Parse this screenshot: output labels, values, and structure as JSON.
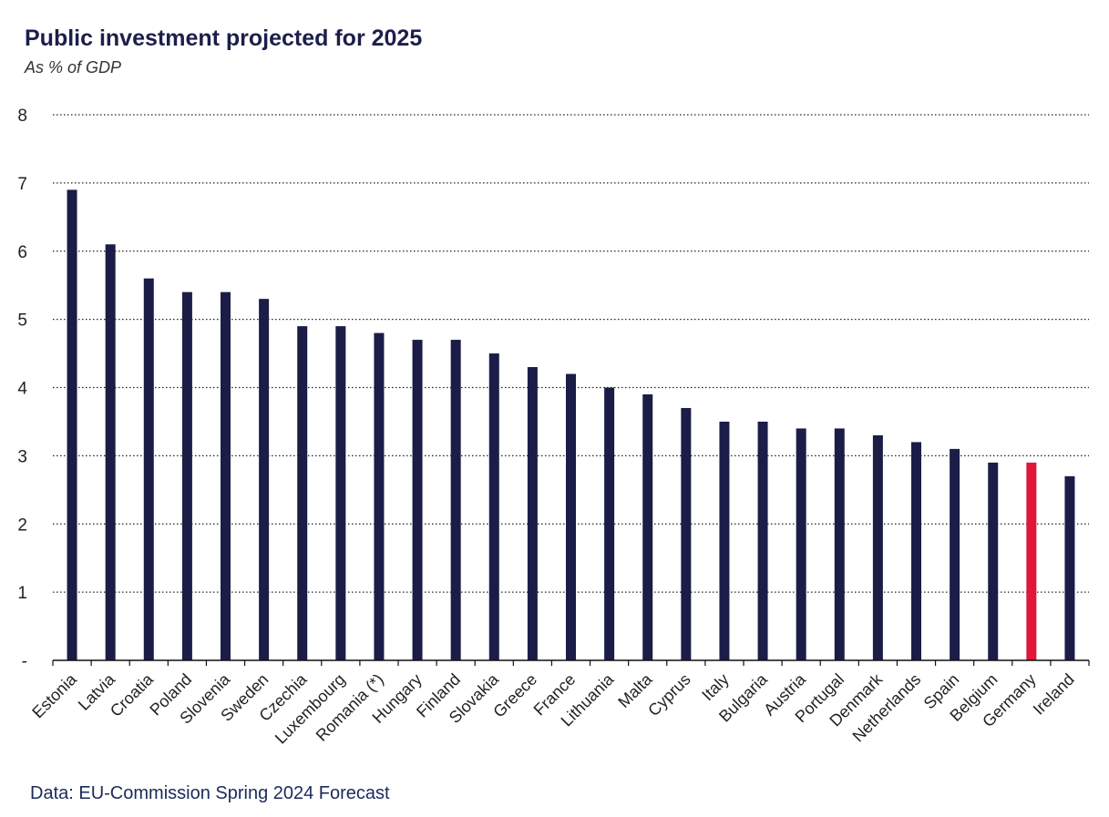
{
  "title": "Public investment projected for 2025",
  "subtitle": "As % of GDP",
  "source": "Data: EU-Commission Spring 2024 Forecast",
  "colors": {
    "bar": "#1b1d47",
    "highlight": "#e0173a",
    "axis": "#111111",
    "grid": "#222222"
  },
  "chart_data": {
    "type": "bar",
    "title": "Public investment projected for 2025",
    "subtitle": "As % of GDP",
    "xlabel": "",
    "ylabel": "",
    "ylim": [
      0,
      8
    ],
    "yticks": [
      0,
      1,
      2,
      3,
      4,
      5,
      6,
      7,
      8
    ],
    "ytick_labels": [
      "-",
      "1",
      "2",
      "3",
      "4",
      "5",
      "6",
      "7",
      "8"
    ],
    "grid": "horizontal dotted",
    "highlight_category": "Germany",
    "categories": [
      "Estonia",
      "Latvia",
      "Croatia",
      "Poland",
      "Slovenia",
      "Sweden",
      "Czechia",
      "Luxembourg",
      "Romania (*)",
      "Hungary",
      "Finland",
      "Slovakia",
      "Greece",
      "France",
      "Lithuania",
      "Malta",
      "Cyprus",
      "Italy",
      "Bulgaria",
      "Austria",
      "Portugal",
      "Denmark",
      "Netherlands",
      "Spain",
      "Belgium",
      "Germany",
      "Ireland"
    ],
    "values": [
      6.9,
      6.1,
      5.6,
      5.4,
      5.4,
      5.3,
      4.9,
      4.9,
      4.8,
      4.7,
      4.7,
      4.5,
      4.3,
      4.2,
      4.0,
      3.9,
      3.7,
      3.5,
      3.5,
      3.4,
      3.4,
      3.3,
      3.2,
      3.1,
      2.9,
      2.9,
      2.7
    ]
  }
}
